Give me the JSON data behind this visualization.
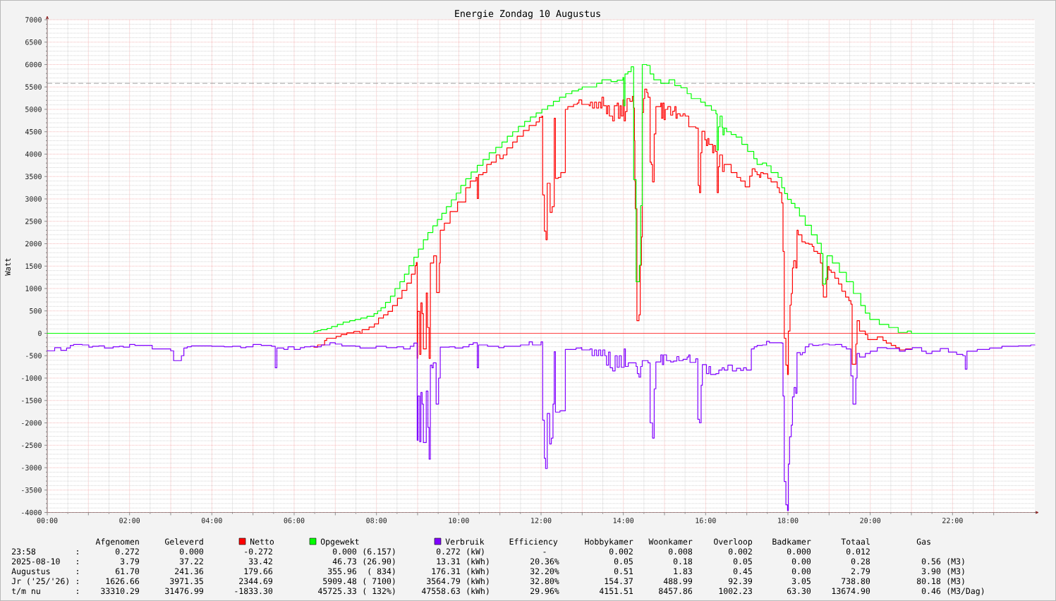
{
  "chart_data": {
    "type": "step",
    "title": "Energie Zondag 10 Augustus",
    "ylabel": "Watt",
    "xlim": [
      0,
      24
    ],
    "ylim": [
      -4000,
      7000
    ],
    "xticks": [
      {
        "value": 0,
        "label": "00:00"
      },
      {
        "value": 1,
        "label": null
      },
      {
        "value": 2,
        "label": "02:00"
      },
      {
        "value": 3,
        "label": null
      },
      {
        "value": 4,
        "label": "04:00"
      },
      {
        "value": 5,
        "label": null
      },
      {
        "value": 6,
        "label": "06:00"
      },
      {
        "value": 7,
        "label": null
      },
      {
        "value": 8,
        "label": "08:00"
      },
      {
        "value": 9,
        "label": null
      },
      {
        "value": 10,
        "label": "10:00"
      },
      {
        "value": 11,
        "label": null
      },
      {
        "value": 12,
        "label": "12:00"
      },
      {
        "value": 13,
        "label": null
      },
      {
        "value": 14,
        "label": "14:00"
      },
      {
        "value": 15,
        "label": null
      },
      {
        "value": 16,
        "label": "16:00"
      },
      {
        "value": 17,
        "label": null
      },
      {
        "value": 18,
        "label": "18:00"
      },
      {
        "value": 19,
        "label": null
      },
      {
        "value": 20,
        "label": "20:00"
      },
      {
        "value": 21,
        "label": null
      },
      {
        "value": 22,
        "label": "22:00"
      },
      {
        "value": 23,
        "label": null
      }
    ],
    "yticks": [
      -4000,
      -3500,
      -3000,
      -2500,
      -2000,
      -1500,
      -1000,
      -500,
      0,
      500,
      1000,
      1500,
      2000,
      2500,
      3000,
      3500,
      4000,
      4500,
      5000,
      5500,
      6000,
      6500,
      7000
    ],
    "grid": true,
    "legend": "bottom",
    "ref_lines": [
      {
        "axis": "y",
        "value": 0,
        "color": "#ff0000"
      },
      {
        "axis": "y",
        "value": 5580,
        "color": "#808080",
        "line_style": "dashed"
      }
    ],
    "series": [
      {
        "name": "Netto",
        "color": "#ff0000",
        "x": [
          6.48,
          6.57,
          6.74,
          6.79,
          7.02,
          7.14,
          7.28,
          7.45,
          7.6,
          7.65,
          7.82,
          7.95,
          8.05,
          8.17,
          8.28,
          8.39,
          8.51,
          8.62,
          8.74,
          8.85,
          8.94,
          8.97,
          8.99,
          9.0,
          9.05,
          9.08,
          9.11,
          9.14,
          9.21,
          9.24,
          9.28,
          9.31,
          9.39,
          9.46,
          9.53,
          9.55,
          9.65,
          9.79,
          9.97,
          10.17,
          10.28,
          10.42,
          10.45,
          10.48,
          10.59,
          10.68,
          10.79,
          10.91,
          11.0,
          11.08,
          11.17,
          11.31,
          11.42,
          11.57,
          11.71,
          11.88,
          11.96,
          12.02,
          12.04,
          12.08,
          12.12,
          12.15,
          12.22,
          12.27,
          12.32,
          12.35,
          12.42,
          12.48,
          12.59,
          12.65,
          12.79,
          12.88,
          12.92,
          12.99,
          13.17,
          13.2,
          13.25,
          13.3,
          13.35,
          13.4,
          13.45,
          13.48,
          13.52,
          13.59,
          13.62,
          13.66,
          13.74,
          13.78,
          13.85,
          13.88,
          13.92,
          13.95,
          13.99,
          14.02,
          14.05,
          14.09,
          14.16,
          14.22,
          14.25,
          14.27,
          14.28,
          14.29,
          14.33,
          14.38,
          14.41,
          14.44,
          14.46,
          14.49,
          14.52,
          14.57,
          14.6,
          14.65,
          14.68,
          14.71,
          14.75,
          14.79,
          14.91,
          14.93,
          14.96,
          14.99,
          15.02,
          15.08,
          15.15,
          15.2,
          15.25,
          15.28,
          15.31,
          15.38,
          15.45,
          15.5,
          15.59,
          15.76,
          15.82,
          15.85,
          15.88,
          15.91,
          15.98,
          16.02,
          16.05,
          16.08,
          16.17,
          16.2,
          16.24,
          16.28,
          16.31,
          16.34,
          16.41,
          16.45,
          16.62,
          16.76,
          16.85,
          16.96,
          17.07,
          17.13,
          17.2,
          17.25,
          17.31,
          17.34,
          17.4,
          17.51,
          17.59,
          17.74,
          17.79,
          17.85,
          17.88,
          17.91,
          17.95,
          17.99,
          18.01,
          18.05,
          18.08,
          18.11,
          18.14,
          18.19,
          18.22,
          18.25,
          18.34,
          18.42,
          18.51,
          18.59,
          18.63,
          18.72,
          18.79,
          18.84,
          18.86,
          18.94,
          18.97,
          19.0,
          19.05,
          19.14,
          19.23,
          19.31,
          19.4,
          19.48,
          19.53,
          19.56,
          19.65,
          19.68,
          19.74,
          19.88,
          19.94,
          20.17,
          20.31,
          20.39,
          20.51,
          20.62,
          20.71,
          20.86,
          21.0
        ],
        "values": [
          -310,
          -260,
          -160,
          -110,
          -70,
          -30,
          10,
          40,
          0,
          80,
          140,
          210,
          340,
          410,
          490,
          620,
          780,
          960,
          1120,
          1320,
          1510,
          1580,
          -560,
          490,
          -470,
          680,
          440,
          -350,
          900,
          130,
          -560,
          1570,
          1730,
          910,
          1570,
          2300,
          2460,
          2720,
          2930,
          3250,
          3400,
          3480,
          3010,
          3540,
          3590,
          3770,
          3820,
          3980,
          3900,
          3980,
          4140,
          4270,
          4400,
          4530,
          4640,
          4720,
          4820,
          4850,
          3090,
          2280,
          2090,
          3350,
          2700,
          2830,
          4800,
          3460,
          3480,
          3590,
          5000,
          5060,
          5110,
          5140,
          5210,
          5110,
          5080,
          5160,
          5030,
          5160,
          5030,
          5160,
          5030,
          5270,
          5080,
          4900,
          5080,
          4850,
          4740,
          5080,
          5140,
          4800,
          5080,
          4850,
          5210,
          4740,
          4950,
          5240,
          5180,
          5290,
          5030,
          4300,
          3400,
          2780,
          280,
          410,
          1520,
          2150,
          4930,
          5240,
          5450,
          5370,
          5270,
          3820,
          3770,
          3380,
          4450,
          5060,
          5140,
          4800,
          5140,
          4770,
          5000,
          5060,
          4870,
          4960,
          5060,
          4800,
          4900,
          4850,
          4900,
          4850,
          4610,
          4580,
          3300,
          3140,
          4030,
          4510,
          4320,
          4190,
          4350,
          4220,
          4030,
          4190,
          4060,
          3140,
          3720,
          3980,
          3610,
          3770,
          3590,
          3480,
          3400,
          3270,
          3510,
          3670,
          3610,
          3540,
          3480,
          3590,
          3560,
          3460,
          3380,
          3250,
          3140,
          2910,
          1830,
          -110,
          -710,
          -920,
          50,
          630,
          890,
          1460,
          1620,
          1460,
          2300,
          2200,
          2040,
          2010,
          1990,
          1940,
          1830,
          1780,
          1570,
          1070,
          810,
          1200,
          1490,
          1410,
          1360,
          1230,
          1100,
          940,
          810,
          730,
          650,
          -690,
          -240,
          280,
          50,
          -30,
          -140,
          -80,
          -160,
          -220,
          -270,
          -320,
          -370,
          -350,
          -350
        ]
      },
      {
        "name": "Opgewekt",
        "color": "#00ff00",
        "x": [
          0,
          6.48,
          6.57,
          6.65,
          6.8,
          6.91,
          7.05,
          7.19,
          7.35,
          7.48,
          7.62,
          7.77,
          7.94,
          8.03,
          8.11,
          8.22,
          8.34,
          8.45,
          8.57,
          8.68,
          8.79,
          8.91,
          9.02,
          9.14,
          9.25,
          9.37,
          9.48,
          9.59,
          9.7,
          9.82,
          9.94,
          10.05,
          10.17,
          10.3,
          10.45,
          10.59,
          10.74,
          10.9,
          11.05,
          11.18,
          11.31,
          11.45,
          11.6,
          11.74,
          11.88,
          12.02,
          12.16,
          12.3,
          12.45,
          12.6,
          12.75,
          12.91,
          13.0,
          13.35,
          13.48,
          13.7,
          13.85,
          13.99,
          14.01,
          14.04,
          14.11,
          14.19,
          14.25,
          14.31,
          14.39,
          14.42,
          14.46,
          14.57,
          14.65,
          14.74,
          14.91,
          15.11,
          15.25,
          15.4,
          15.55,
          15.65,
          15.88,
          15.99,
          16.14,
          16.25,
          16.28,
          16.31,
          16.35,
          16.4,
          16.42,
          16.45,
          16.51,
          16.62,
          16.74,
          16.88,
          17.02,
          17.17,
          17.25,
          17.38,
          17.48,
          17.59,
          17.76,
          17.85,
          17.92,
          17.99,
          18.08,
          18.17,
          18.28,
          18.42,
          18.57,
          18.71,
          18.81,
          18.85,
          18.92,
          18.95,
          19.08,
          19.25,
          19.42,
          19.59,
          19.77,
          19.88,
          19.99,
          20.22,
          20.45,
          20.68,
          20.9,
          21.0,
          24
        ],
        "values": [
          0,
          40,
          60,
          80,
          110,
          150,
          200,
          250,
          280,
          310,
          340,
          380,
          440,
          500,
          570,
          690,
          830,
          1000,
          1150,
          1320,
          1510,
          1700,
          1880,
          2090,
          2250,
          2400,
          2540,
          2680,
          2830,
          2980,
          3130,
          3300,
          3450,
          3600,
          3750,
          3880,
          4030,
          4150,
          4270,
          4400,
          4500,
          4620,
          4730,
          4830,
          4920,
          5000,
          5080,
          5180,
          5270,
          5350,
          5410,
          5450,
          5500,
          5580,
          5660,
          5620,
          5650,
          5710,
          5080,
          5790,
          5840,
          5950,
          3430,
          1150,
          1520,
          2850,
          6000,
          5980,
          5790,
          5660,
          5580,
          5660,
          5530,
          5480,
          5350,
          5240,
          5160,
          5080,
          4980,
          4900,
          4090,
          4610,
          4850,
          4600,
          4430,
          4580,
          4500,
          4440,
          4380,
          4220,
          4060,
          3900,
          3770,
          3800,
          3740,
          3590,
          3480,
          3250,
          3120,
          2990,
          2900,
          2800,
          2620,
          2410,
          2200,
          2010,
          1780,
          1100,
          1230,
          1730,
          1570,
          1360,
          1150,
          890,
          620,
          450,
          310,
          200,
          130,
          20,
          50,
          0,
          0
        ]
      },
      {
        "name": "Verbruik",
        "color": "#8000ff",
        "x": [
          0,
          0.18,
          0.33,
          0.47,
          0.56,
          0.64,
          0.85,
          1.01,
          1.1,
          1.25,
          1.39,
          1.6,
          1.75,
          1.85,
          2.0,
          2.13,
          2.55,
          2.84,
          3.0,
          3.07,
          3.26,
          3.32,
          3.4,
          3.5,
          4.0,
          4.3,
          4.5,
          4.7,
          4.83,
          5.0,
          5.2,
          5.45,
          5.54,
          5.58,
          5.75,
          5.85,
          6.0,
          6.15,
          6.25,
          6.4,
          6.5,
          6.66,
          6.87,
          7.0,
          7.16,
          7.49,
          7.6,
          7.99,
          8.24,
          8.5,
          8.66,
          8.82,
          8.91,
          8.99,
          9.01,
          9.05,
          9.08,
          9.11,
          9.14,
          9.21,
          9.25,
          9.28,
          9.31,
          9.35,
          9.38,
          9.45,
          9.51,
          9.55,
          9.77,
          9.91,
          10.1,
          10.25,
          10.35,
          10.45,
          10.48,
          10.7,
          10.97,
          11.1,
          11.5,
          11.71,
          11.79,
          12.0,
          12.04,
          12.08,
          12.11,
          12.15,
          12.21,
          12.25,
          12.29,
          12.32,
          12.35,
          12.46,
          12.59,
          12.85,
          12.97,
          12.99,
          13.19,
          13.24,
          13.3,
          13.35,
          13.4,
          13.45,
          13.5,
          13.55,
          13.59,
          13.64,
          13.68,
          13.74,
          13.8,
          13.85,
          13.9,
          13.95,
          14.02,
          14.05,
          14.12,
          14.31,
          14.34,
          14.38,
          14.42,
          14.46,
          14.6,
          14.65,
          14.71,
          14.75,
          14.79,
          14.91,
          14.95,
          14.98,
          15.05,
          15.15,
          15.22,
          15.3,
          15.35,
          15.45,
          15.55,
          15.59,
          15.62,
          15.76,
          15.81,
          15.85,
          15.89,
          15.92,
          16.02,
          16.08,
          16.12,
          16.25,
          16.32,
          16.4,
          16.45,
          16.54,
          16.65,
          16.75,
          16.85,
          16.92,
          16.99,
          17.11,
          17.18,
          17.25,
          17.38,
          17.48,
          17.55,
          17.85,
          17.88,
          17.91,
          17.95,
          17.99,
          18.01,
          18.04,
          18.08,
          18.11,
          18.15,
          18.19,
          18.22,
          18.3,
          18.35,
          18.42,
          18.51,
          18.6,
          18.75,
          18.85,
          19.0,
          19.15,
          19.31,
          19.42,
          19.53,
          19.58,
          19.65,
          19.68,
          19.74,
          19.88,
          20.0,
          20.17,
          20.4,
          20.71,
          20.85,
          21.02,
          21.25,
          21.36,
          21.5,
          21.7,
          21.9,
          22.1,
          22.25,
          22.31,
          22.35,
          22.6,
          22.9,
          23.2,
          23.6,
          23.9,
          24
        ],
        "values": [
          -390,
          -320,
          -380,
          -330,
          -270,
          -250,
          -260,
          -310,
          -290,
          -280,
          -330,
          -300,
          -290,
          -310,
          -250,
          -270,
          -350,
          -350,
          -390,
          -610,
          -500,
          -330,
          -300,
          -280,
          -290,
          -300,
          -290,
          -320,
          -300,
          -250,
          -270,
          -290,
          -770,
          -330,
          -360,
          -300,
          -360,
          -320,
          -300,
          -290,
          -300,
          -260,
          -210,
          -240,
          -280,
          -290,
          -330,
          -290,
          -320,
          -300,
          -350,
          -290,
          -220,
          -2390,
          -1400,
          -2420,
          -1320,
          -1580,
          -2440,
          -1290,
          -2100,
          -2810,
          -710,
          -770,
          -660,
          -1580,
          -1000,
          -310,
          -300,
          -330,
          -300,
          -250,
          -210,
          -770,
          -260,
          -290,
          -320,
          -290,
          -260,
          -190,
          -260,
          -190,
          -1940,
          -2790,
          -3020,
          -1790,
          -2470,
          -2340,
          -1580,
          -410,
          -1760,
          -1730,
          -360,
          -330,
          -320,
          -370,
          -350,
          -500,
          -370,
          -500,
          -370,
          -500,
          -370,
          -500,
          -710,
          -420,
          -770,
          -840,
          -500,
          -760,
          -500,
          -760,
          -350,
          -740,
          -660,
          -740,
          -900,
          -980,
          -740,
          -610,
          -660,
          -2000,
          -2340,
          -1240,
          -640,
          -480,
          -700,
          -480,
          -610,
          -640,
          -620,
          -520,
          -610,
          -580,
          -530,
          -480,
          -650,
          -570,
          -1920,
          -2000,
          -1160,
          -700,
          -900,
          -740,
          -920,
          -900,
          -820,
          -770,
          -820,
          -710,
          -840,
          -780,
          -830,
          -770,
          -820,
          -350,
          -300,
          -270,
          -260,
          -180,
          -210,
          -220,
          -1400,
          -3310,
          -3830,
          -3960,
          -2920,
          -2310,
          -2050,
          -1420,
          -1210,
          -1340,
          -430,
          -480,
          -430,
          -300,
          -240,
          -270,
          -260,
          -240,
          -260,
          -250,
          -300,
          -350,
          -950,
          -1580,
          -1000,
          -450,
          -530,
          -450,
          -400,
          -320,
          -340,
          -400,
          -360,
          -320,
          -400,
          -450,
          -400,
          -340,
          -420,
          -470,
          -500,
          -800,
          -400,
          -360,
          -330,
          -290,
          -280,
          -260,
          -260
        ]
      }
    ],
    "annotations": [
      "Afgenomen",
      "Geleverd",
      "Efficiency",
      "Hobbykamer",
      "Woonkamer",
      "Overloop",
      "Badkamer",
      "Totaal",
      "Gas",
      "23:58",
      ":",
      "0.272",
      "0.000",
      "-0.272",
      "0.000",
      "(6.157)",
      "0.272",
      "(kW)",
      "-",
      "0.002",
      "0.008",
      "0.002",
      "0.000",
      "0.012",
      "2025-08-10",
      ":",
      "3.79",
      "37.22",
      "33.42",
      "46.73",
      "(26.90)",
      "13.31",
      "(kWh)",
      "20.36%",
      "0.05",
      "0.18",
      "0.05",
      "0.00",
      "0.28",
      "0.56",
      "(M3)",
      "Augustus",
      ":",
      "61.70",
      "241.36",
      "179.66",
      "355.96",
      "( 834)",
      "176.31",
      "(kWh)",
      "32.20%",
      "0.51",
      "1.83",
      "0.45",
      "0.00",
      "2.79",
      "3.90",
      "(M3)",
      "Jr ('25/'26)",
      ":",
      "1626.66",
      "3971.35",
      "2344.69",
      "5909.48",
      "( 7100)",
      "3564.79",
      "(kWh)",
      "32.80%",
      "154.37",
      "488.99",
      "92.39",
      "3.05",
      "738.80",
      "80.18",
      "(M3)",
      "t/m nu",
      ":",
      "33310.29",
      "31476.99",
      "-1833.30",
      "45725.33",
      "( 132%)",
      "47558.63",
      "(kWh)",
      "29.96%",
      "4151.51",
      "8457.86",
      "1002.23",
      "63.30",
      "13674.90",
      "0.46",
      "(M3/Dag)"
    ]
  }
}
